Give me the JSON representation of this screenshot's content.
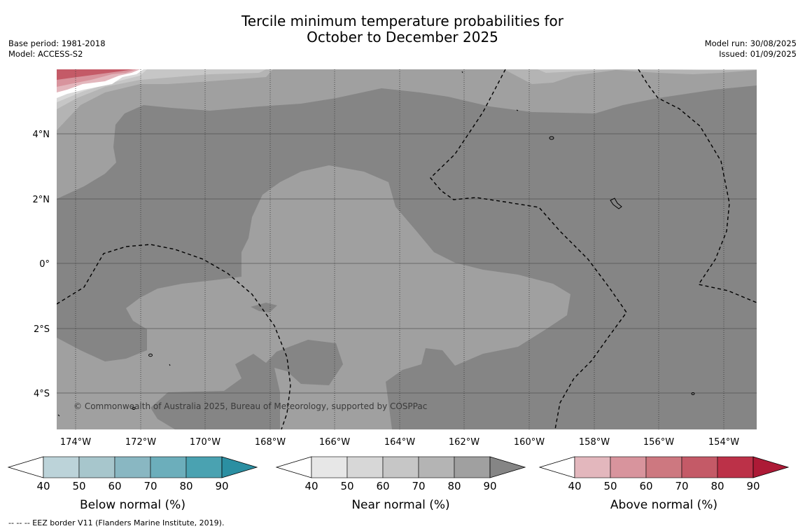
{
  "title": {
    "line1": "Tercile minimum temperature probabilities for",
    "line2": "October to December 2025"
  },
  "meta": {
    "base_period": "Base period: 1981-2018",
    "model": "Model: ACCESS-S2",
    "model_run": "Model run: 30/08/2025",
    "issued": "Issued: 01/09/2025"
  },
  "map": {
    "lon_labels": [
      "174°W",
      "172°W",
      "170°W",
      "168°W",
      "166°W",
      "164°W",
      "162°W",
      "160°W",
      "158°W",
      "156°W",
      "154°W"
    ],
    "lat_labels": [
      "4°N",
      "2°N",
      "0°",
      "2°S",
      "4°S"
    ],
    "copyright": "© Commonwealth of Australia 2025, Bureau of Meteorology, supported by COSPPac",
    "colors": {
      "near_70_80": "#a0a0a0",
      "near_80_90": "#858585",
      "near_60_70": "#b4b4b4",
      "near_50_60": "#c6c6c6",
      "near_40_50": "#d8d8d8"
    }
  },
  "legends": [
    {
      "label": "Below normal (%)",
      "ticks": [
        "40",
        "50",
        "60",
        "70",
        "80",
        "90"
      ],
      "colors": [
        "#ffffff",
        "#bcd3d9",
        "#a7c6cc",
        "#89b7c2",
        "#6caebb",
        "#4aa2b1",
        "#2b8fa2"
      ]
    },
    {
      "label": "Near normal (%)",
      "ticks": [
        "40",
        "50",
        "60",
        "70",
        "80",
        "90"
      ],
      "colors": [
        "#ffffff",
        "#e7e7e7",
        "#d7d7d7",
        "#c6c6c6",
        "#b4b4b4",
        "#a0a0a0",
        "#858585"
      ]
    },
    {
      "label": "Above normal (%)",
      "ticks": [
        "40",
        "50",
        "60",
        "70",
        "80",
        "90"
      ],
      "colors": [
        "#ffffff",
        "#e3b7bd",
        "#d8949d",
        "#cd7880",
        "#c45a67",
        "#bc3148",
        "#ad1a36"
      ]
    }
  ],
  "footer": "--  --  -- EEZ border V11 (Flanders Marine Institute, 2019)."
}
